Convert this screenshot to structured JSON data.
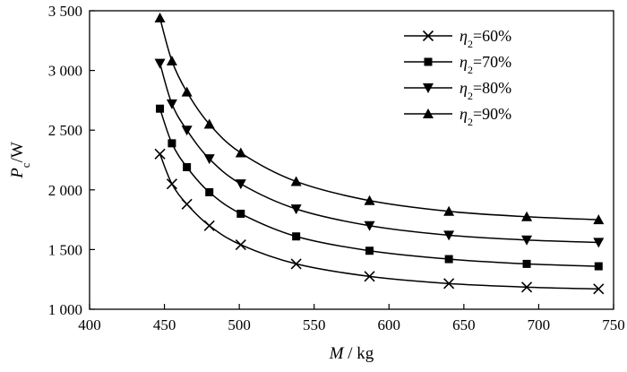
{
  "chart_data": {
    "type": "line",
    "title": "",
    "xlabel": {
      "italic": "M",
      "rest": " / kg"
    },
    "ylabel": {
      "italic": "P",
      "sub": "c",
      "rest": "/W"
    },
    "xlim": [
      400,
      750
    ],
    "ylim": [
      1000,
      3500
    ],
    "xticks": [
      400,
      450,
      500,
      550,
      600,
      650,
      700,
      750
    ],
    "yticks": [
      1000,
      1500,
      2000,
      2500,
      3000,
      3500
    ],
    "xtick_labels": [
      "400",
      "450",
      "500",
      "550",
      "600",
      "650",
      "700",
      "750"
    ],
    "ytick_labels": [
      "1 000",
      "1 500",
      "2 000",
      "2 500",
      "3 000",
      "3 500"
    ],
    "legend_position": "top-right",
    "series": [
      {
        "name": "η2=60%",
        "name_parts": {
          "sym": "η",
          "sub": "2",
          "rest": "=60%"
        },
        "marker": "x",
        "x": [
          447,
          455,
          465,
          480,
          501,
          538,
          587,
          640,
          692,
          740
        ],
        "y": [
          2300,
          2050,
          1880,
          1700,
          1540,
          1380,
          1275,
          1215,
          1185,
          1170
        ]
      },
      {
        "name": "η2=70%",
        "name_parts": {
          "sym": "η",
          "sub": "2",
          "rest": "=70%"
        },
        "marker": "square",
        "x": [
          447,
          455,
          465,
          480,
          501,
          538,
          587,
          640,
          692,
          740
        ],
        "y": [
          2680,
          2390,
          2190,
          1980,
          1800,
          1610,
          1490,
          1420,
          1380,
          1360
        ]
      },
      {
        "name": "η2=80%",
        "name_parts": {
          "sym": "η",
          "sub": "2",
          "rest": "=80%"
        },
        "marker": "triangle-down",
        "x": [
          447,
          455,
          465,
          480,
          501,
          538,
          587,
          640,
          692,
          740
        ],
        "y": [
          3060,
          2720,
          2500,
          2260,
          2050,
          1840,
          1700,
          1620,
          1580,
          1560
        ]
      },
      {
        "name": "η2=90%",
        "name_parts": {
          "sym": "η",
          "sub": "2",
          "rest": "=90%"
        },
        "marker": "triangle-up",
        "x": [
          447,
          455,
          465,
          480,
          501,
          538,
          587,
          640,
          692,
          740
        ],
        "y": [
          3440,
          3080,
          2820,
          2550,
          2310,
          2070,
          1910,
          1820,
          1775,
          1750
        ]
      }
    ]
  }
}
